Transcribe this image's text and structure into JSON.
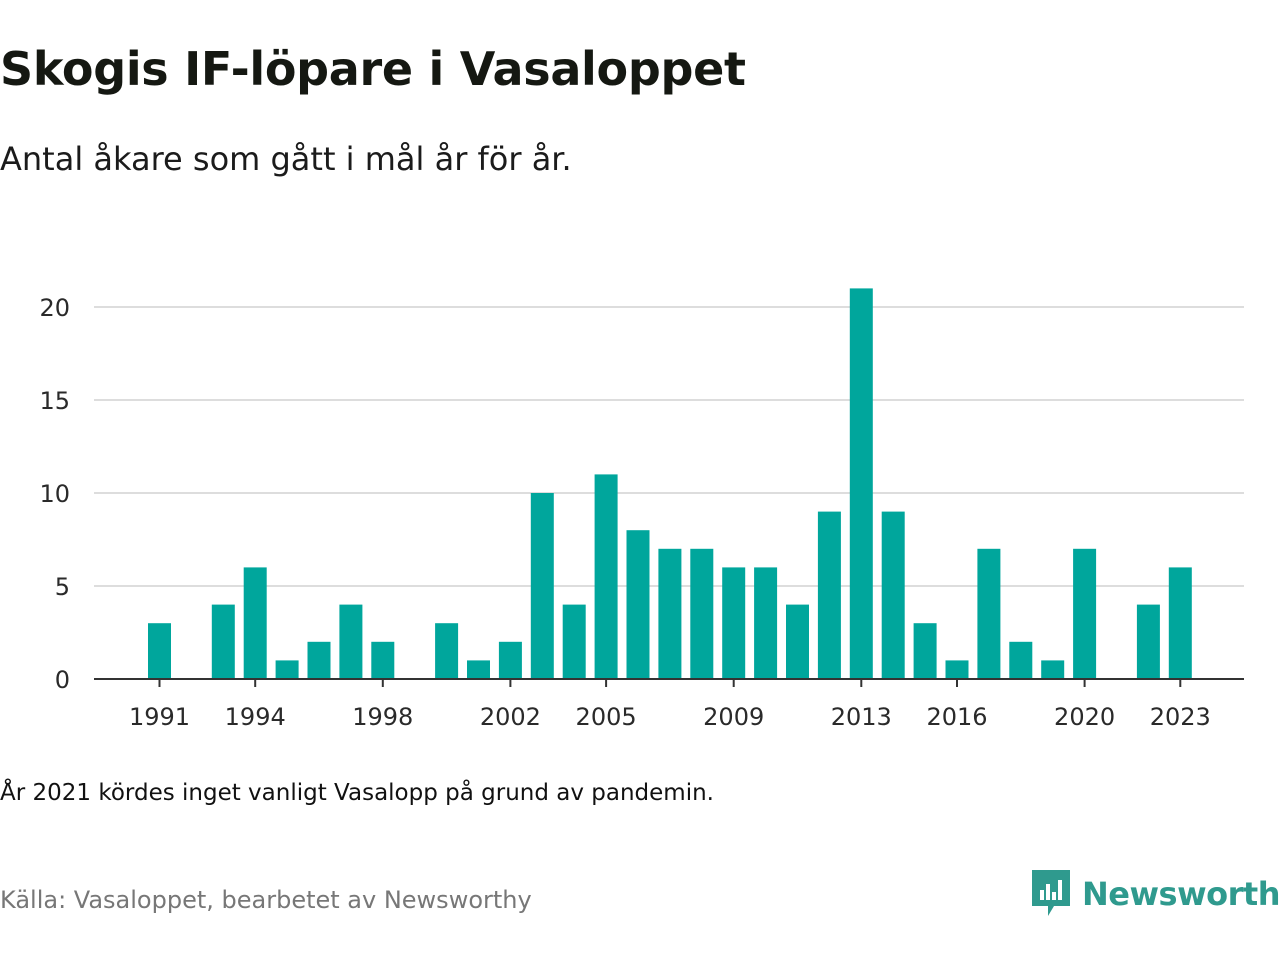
{
  "title": "Skogis IF-löpare i Vasaloppet",
  "subtitle": "Antal åkare som gått i mål år för år.",
  "note": "År 2021 kördes inget vanligt Vasalopp på grund av pandemin.",
  "source": "Källa: Vasaloppet, bearbetet av Newsworthy",
  "brand": {
    "name": "Newsworthy",
    "color": "#2f9a8e",
    "icon": "newsworthy-logo-icon"
  },
  "colors": {
    "bar": "#00a69c",
    "grid": "#dddddd",
    "axis": "#333333"
  },
  "chart_data": {
    "type": "bar",
    "title": "",
    "xlabel": "",
    "ylabel": "",
    "categories": [
      "1991",
      "1992",
      "1993",
      "1994",
      "1995",
      "1996",
      "1997",
      "1998",
      "1999",
      "2000",
      "2001",
      "2002",
      "2003",
      "2004",
      "2005",
      "2006",
      "2007",
      "2008",
      "2009",
      "2010",
      "2011",
      "2012",
      "2013",
      "2014",
      "2015",
      "2016",
      "2017",
      "2018",
      "2019",
      "2020",
      "2021",
      "2022",
      "2023"
    ],
    "values": [
      3,
      0,
      4,
      6,
      1,
      2,
      4,
      2,
      0,
      3,
      1,
      2,
      10,
      4,
      11,
      8,
      7,
      7,
      6,
      6,
      4,
      9,
      21,
      9,
      3,
      1,
      7,
      2,
      1,
      7,
      0,
      4,
      6
    ],
    "xticks": [
      "1991",
      "1994",
      "1998",
      "2002",
      "2005",
      "2009",
      "2013",
      "2016",
      "2020",
      "2023"
    ],
    "yticks": [
      0,
      5,
      10,
      15,
      20
    ],
    "ylim": [
      0,
      21
    ],
    "grid": true,
    "legend": "none"
  }
}
